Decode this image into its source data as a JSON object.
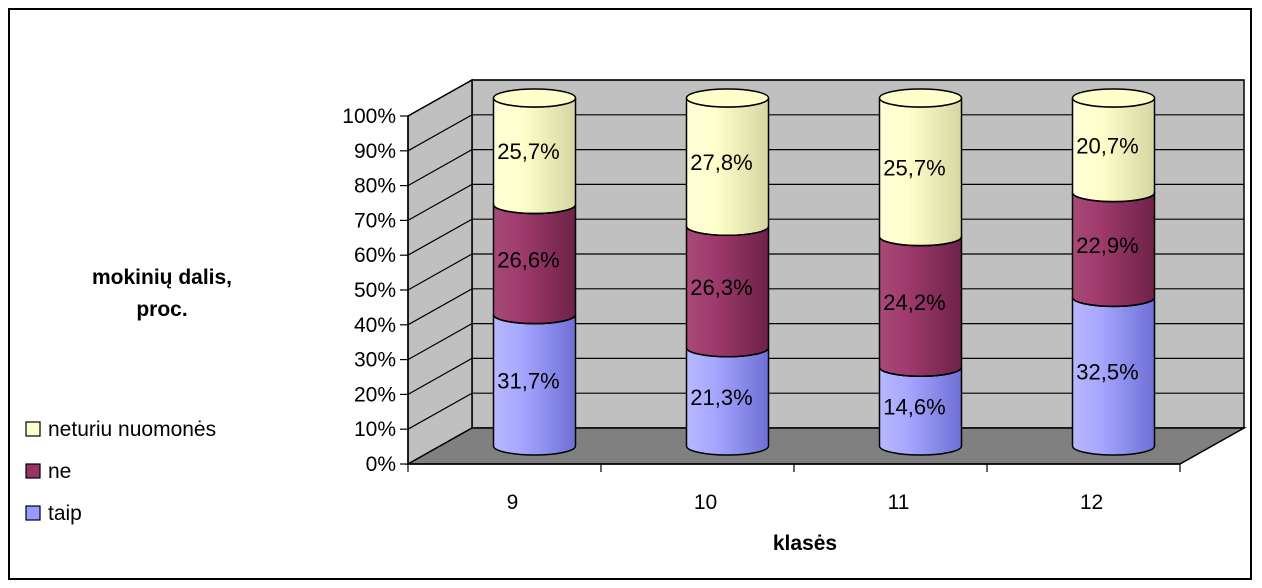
{
  "chart_data": {
    "type": "bar",
    "stacked": true,
    "style": "3d-cylinder",
    "categories": [
      "9",
      "10",
      "11",
      "12"
    ],
    "series": [
      {
        "name": "taip",
        "values": [
          31.7,
          21.3,
          14.6,
          32.5
        ],
        "labels": [
          "31,7%",
          "21,3%",
          "14,6%",
          "32,5%"
        ],
        "color": "#9999ff"
      },
      {
        "name": "ne",
        "values": [
          26.6,
          26.3,
          24.2,
          22.9
        ],
        "labels": [
          "26,6%",
          "26,3%",
          "24,2%",
          "22,9%"
        ],
        "color": "#993366"
      },
      {
        "name": "neturiu nuomonės",
        "values": [
          25.7,
          27.8,
          25.7,
          20.7
        ],
        "labels": [
          "25,7%",
          "27,8%",
          "25,7%",
          "20,7%"
        ],
        "color": "#ffffcc"
      }
    ],
    "normalized_to_100": true,
    "ylim": [
      0,
      100
    ],
    "yticks": [
      "0%",
      "10%",
      "20%",
      "30%",
      "40%",
      "50%",
      "60%",
      "70%",
      "80%",
      "90%",
      "100%"
    ],
    "xlabel": "klasės",
    "ylabel": "mokinių dalis, proc.",
    "ylabel_lines": [
      "mokinių dalis,",
      "proc."
    ],
    "grid": true,
    "legend_position": "bottom-left",
    "legend_order": [
      "neturiu nuomonės",
      "ne",
      "taip"
    ],
    "wall_color": "#c0c0c0",
    "floor_color": "#808080"
  }
}
